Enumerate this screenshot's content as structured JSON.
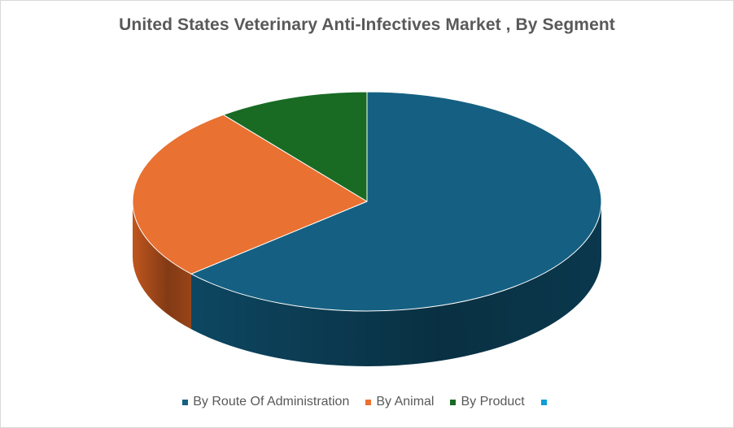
{
  "chart_data": {
    "type": "pie",
    "title": "United States Veterinary Anti-Infectives Market , By Segment",
    "categories": [
      "By Route Of Administration",
      "By Animal",
      "By Product",
      ""
    ],
    "values": [
      63.5,
      26.0,
      10.5,
      0
    ],
    "colors": [
      "#156082",
      "#E97132",
      "#196B24",
      "#0F9ED5"
    ],
    "side_colors": [
      "#0e4a66",
      "#c95a20",
      "#124f1a",
      "#0b7aa5"
    ],
    "legend_position": "bottom",
    "style": "3d"
  }
}
